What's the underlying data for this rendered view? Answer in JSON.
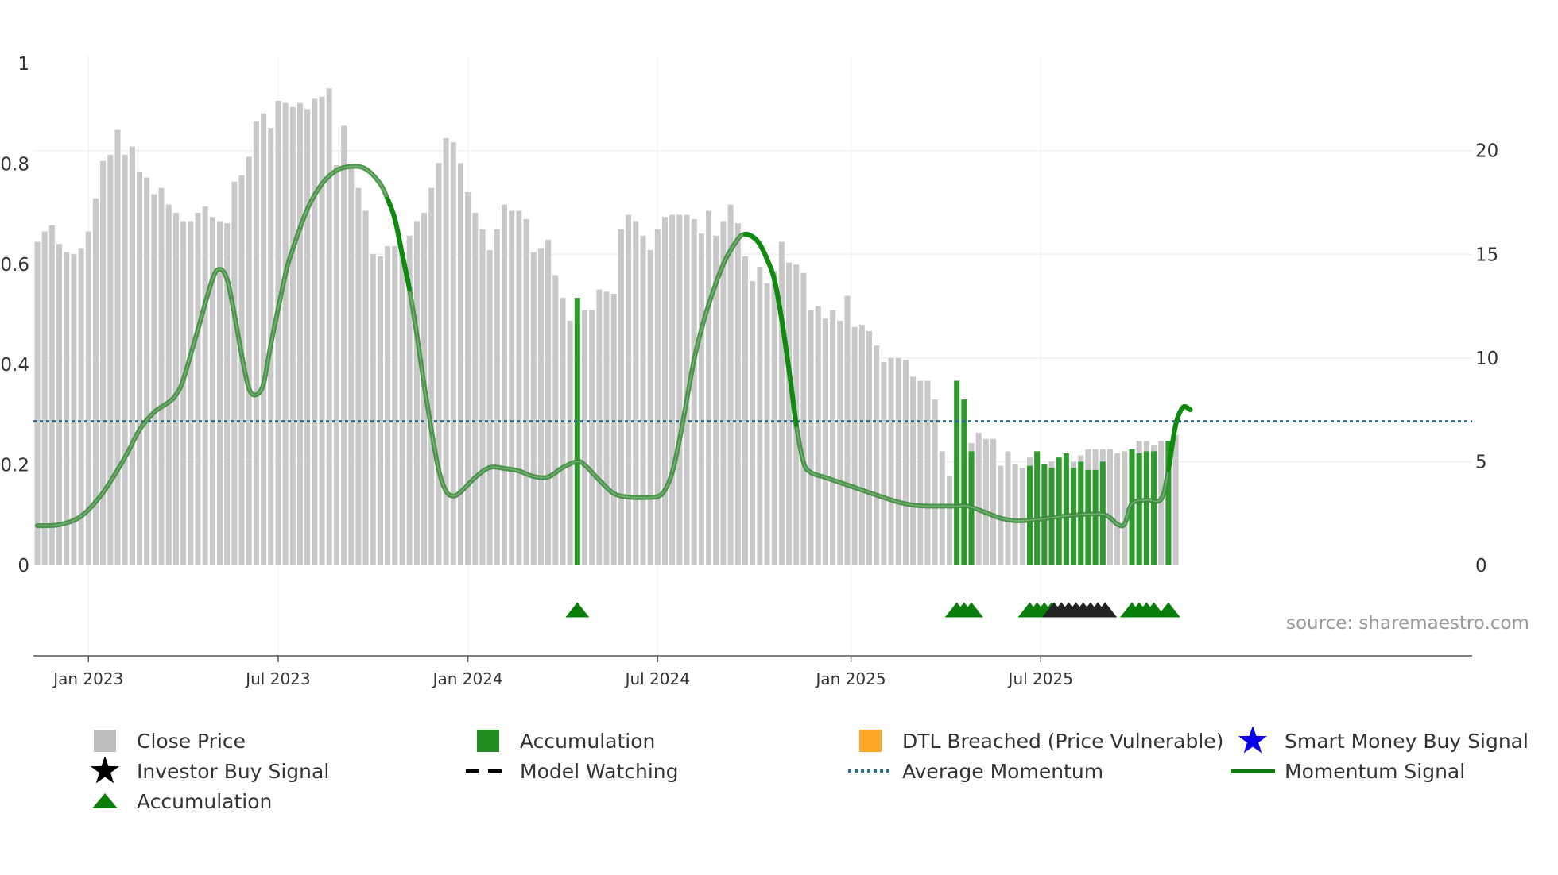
{
  "chart_data": {
    "type": "bar",
    "source": "source: sharemaestro.com",
    "x_ticks": [
      "Jan 2023",
      "Jul 2023",
      "Jan 2024",
      "Jul 2024",
      "Jan 2025",
      "Jul 2025"
    ],
    "left_axis": {
      "ylim": [
        0,
        1.0
      ],
      "ticks": [
        "0",
        "0.2",
        "0.4",
        "0.6",
        "0.8",
        "1"
      ]
    },
    "right_axis": {
      "ylim": [
        0,
        24.2
      ],
      "ticks": [
        "0",
        "5",
        "10",
        "15",
        "20"
      ]
    },
    "average_momentum": 0.287,
    "close_price": [
      15.6,
      16.1,
      16.4,
      15.5,
      15.1,
      15.0,
      15.3,
      16.1,
      17.7,
      19.5,
      19.8,
      21.0,
      19.8,
      20.2,
      19.0,
      18.7,
      17.9,
      18.2,
      17.4,
      17.0,
      16.6,
      16.6,
      17.0,
      17.3,
      16.8,
      16.6,
      16.5,
      18.5,
      18.8,
      19.7,
      21.4,
      21.8,
      21.1,
      22.4,
      22.3,
      22.1,
      22.3,
      22.0,
      22.5,
      22.6,
      23.0,
      19.3,
      21.2,
      19.2,
      18.2,
      17.1,
      15.0,
      14.9,
      15.4,
      15.4,
      15.1,
      15.9,
      16.6,
      17.0,
      18.2,
      19.4,
      20.6,
      20.4,
      19.4,
      18.0,
      17.0,
      16.2,
      15.2,
      16.2,
      17.4,
      17.1,
      17.1,
      16.7,
      15.1,
      15.3,
      15.7,
      14.0,
      12.9,
      11.8,
      11.8,
      12.3,
      12.3,
      13.3,
      13.2,
      13.1,
      16.2,
      16.9,
      16.6,
      15.9,
      15.2,
      16.2,
      16.8,
      16.9,
      16.9,
      16.9,
      16.7,
      16.0,
      17.1,
      15.9,
      16.6,
      17.4,
      16.5,
      14.9,
      13.7,
      14.4,
      13.6,
      14.2,
      15.6,
      14.6,
      14.5,
      14.1,
      12.3,
      12.5,
      11.9,
      12.3,
      11.8,
      13.0,
      11.5,
      11.6,
      11.3,
      10.6,
      9.8,
      10.0,
      10.0,
      9.9,
      9.1,
      8.9,
      8.9,
      8.0,
      5.5,
      4.3,
      5.1,
      5.1,
      5.9,
      6.4,
      6.1,
      6.1,
      4.8,
      5.5,
      4.9,
      4.7,
      5.2,
      5.4,
      4.7,
      5.0,
      4.6,
      4.6,
      5.0,
      5.3,
      5.6,
      5.6,
      5.6,
      5.6,
      5.4,
      5.5,
      5.5,
      6.0,
      6.0,
      5.8,
      6.0,
      6.0,
      6.3
    ],
    "accumulation_bars": [
      {
        "index": 74,
        "value": 12.9
      },
      {
        "index": 126,
        "value": 8.9
      },
      {
        "index": 127,
        "value": 8.0
      },
      {
        "index": 128,
        "value": 5.5
      },
      {
        "index": 136,
        "value": 4.8
      },
      {
        "index": 137,
        "value": 5.5
      },
      {
        "index": 138,
        "value": 4.9
      },
      {
        "index": 139,
        "value": 4.7
      },
      {
        "index": 140,
        "value": 5.2
      },
      {
        "index": 141,
        "value": 5.4
      },
      {
        "index": 142,
        "value": 4.7
      },
      {
        "index": 143,
        "value": 5.0
      },
      {
        "index": 144,
        "value": 4.6
      },
      {
        "index": 145,
        "value": 4.6
      },
      {
        "index": 146,
        "value": 5.0
      },
      {
        "index": 150,
        "value": 5.6
      },
      {
        "index": 151,
        "value": 5.4
      },
      {
        "index": 152,
        "value": 5.5
      },
      {
        "index": 153,
        "value": 5.5
      },
      {
        "index": 155,
        "value": 6.0
      }
    ],
    "momentum_signal": [
      [
        0,
        0.079
      ],
      [
        3,
        0.081
      ],
      [
        6,
        0.098
      ],
      [
        9,
        0.145
      ],
      [
        12,
        0.215
      ],
      [
        14,
        0.27
      ],
      [
        16,
        0.305
      ],
      [
        18,
        0.325
      ],
      [
        19,
        0.34
      ],
      [
        20,
        0.37
      ],
      [
        22,
        0.47
      ],
      [
        24,
        0.57
      ],
      [
        25,
        0.59
      ],
      [
        26,
        0.57
      ],
      [
        27,
        0.5
      ],
      [
        28,
        0.42
      ],
      [
        29,
        0.352
      ],
      [
        30,
        0.34
      ],
      [
        31,
        0.362
      ],
      [
        32,
        0.44
      ],
      [
        34,
        0.58
      ],
      [
        35,
        0.63
      ],
      [
        37,
        0.71
      ],
      [
        39,
        0.76
      ],
      [
        41,
        0.787
      ],
      [
        43,
        0.795
      ],
      [
        45,
        0.79
      ],
      [
        47,
        0.76
      ],
      [
        48,
        0.73
      ],
      [
        49,
        0.69
      ],
      [
        50,
        0.62
      ],
      [
        51,
        0.55
      ],
      [
        52,
        0.46
      ],
      [
        53,
        0.36
      ],
      [
        54,
        0.27
      ],
      [
        55,
        0.19
      ],
      [
        56,
        0.148
      ],
      [
        57,
        0.138
      ],
      [
        58,
        0.146
      ],
      [
        60,
        0.175
      ],
      [
        62,
        0.195
      ],
      [
        64,
        0.193
      ],
      [
        66,
        0.188
      ],
      [
        68,
        0.177
      ],
      [
        70,
        0.176
      ],
      [
        72,
        0.195
      ],
      [
        74,
        0.207
      ],
      [
        75,
        0.2
      ],
      [
        77,
        0.17
      ],
      [
        79,
        0.143
      ],
      [
        81,
        0.136
      ],
      [
        83,
        0.135
      ],
      [
        85,
        0.137
      ],
      [
        86,
        0.15
      ],
      [
        87,
        0.185
      ],
      [
        88,
        0.25
      ],
      [
        89,
        0.33
      ],
      [
        90,
        0.41
      ],
      [
        91,
        0.47
      ],
      [
        92,
        0.52
      ],
      [
        94,
        0.6
      ],
      [
        96,
        0.65
      ],
      [
        97,
        0.66
      ],
      [
        98,
        0.655
      ],
      [
        99,
        0.64
      ],
      [
        100,
        0.61
      ],
      [
        101,
        0.57
      ],
      [
        102,
        0.49
      ],
      [
        103,
        0.39
      ],
      [
        104,
        0.28
      ],
      [
        105,
        0.205
      ],
      [
        106,
        0.185
      ],
      [
        108,
        0.175
      ],
      [
        110,
        0.165
      ],
      [
        112,
        0.155
      ],
      [
        114,
        0.145
      ],
      [
        116,
        0.135
      ],
      [
        118,
        0.126
      ],
      [
        120,
        0.12
      ],
      [
        122,
        0.118
      ],
      [
        124,
        0.118
      ],
      [
        126,
        0.118
      ],
      [
        127,
        0.119
      ],
      [
        128,
        0.116
      ],
      [
        130,
        0.105
      ],
      [
        132,
        0.094
      ],
      [
        134,
        0.089
      ],
      [
        136,
        0.09
      ],
      [
        138,
        0.093
      ],
      [
        140,
        0.097
      ],
      [
        142,
        0.1
      ],
      [
        144,
        0.102
      ],
      [
        146,
        0.102
      ],
      [
        147,
        0.095
      ],
      [
        148,
        0.082
      ],
      [
        149,
        0.082
      ],
      [
        150,
        0.123
      ],
      [
        152,
        0.13
      ],
      [
        154,
        0.132
      ],
      [
        155,
        0.19
      ],
      [
        156,
        0.28
      ],
      [
        157,
        0.315
      ],
      [
        158,
        0.31
      ]
    ],
    "momentum_highlight_ranges": [
      [
        48,
        51
      ],
      [
        97,
        104
      ],
      [
        155,
        158
      ]
    ],
    "accumulation_markers": [
      74,
      126,
      127,
      128,
      136,
      137,
      138,
      139,
      150,
      151,
      152,
      153,
      155
    ],
    "investor_markers": [
      139,
      140,
      141,
      142,
      143,
      144,
      145,
      146
    ],
    "legend": [
      {
        "label": "Close Price",
        "color": "#bdbdbd",
        "symbol": "square"
      },
      {
        "label": "Accumulation",
        "color": "#228b22",
        "symbol": "square"
      },
      {
        "label": "DTL Breached (Price Vulnerable)",
        "color": "#ffa726",
        "symbol": "square"
      },
      {
        "label": "Smart Money Buy Signal",
        "color": "#0a00e8",
        "symbol": "star"
      },
      {
        "label": "Investor Buy Signal",
        "color": "#000000",
        "symbol": "star"
      },
      {
        "label": "Model Watching",
        "color": "#000000",
        "symbol": "dash"
      },
      {
        "label": "Average Momentum",
        "color": "#2b6b8f",
        "symbol": "dot"
      },
      {
        "label": "Momentum Signal",
        "color": "#107c10",
        "symbol": "line"
      },
      {
        "label": "Accumulation",
        "color": "#0a7e0a",
        "symbol": "triangle"
      }
    ]
  }
}
